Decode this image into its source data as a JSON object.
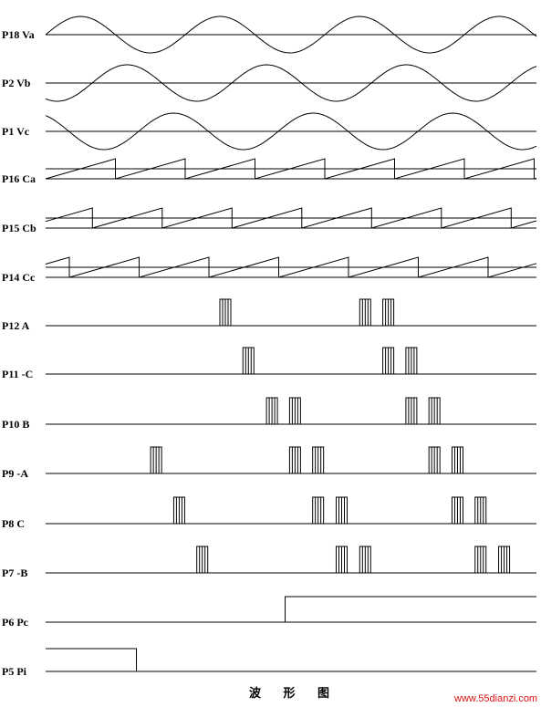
{
  "caption": "波 形 图",
  "watermark": "www.55dianzi.com",
  "rows": [
    {
      "label": "P18 Va",
      "kind": "sine",
      "phase_deg": 0
    },
    {
      "label": "P2 Vb",
      "kind": "sine",
      "phase_deg": -120
    },
    {
      "label": "P1 Vc",
      "kind": "sine",
      "phase_deg": -240
    },
    {
      "label": "P16 Ca",
      "kind": "saw",
      "offset_frac": 0.0
    },
    {
      "label": "P15 Cb",
      "kind": "saw",
      "offset_frac": 0.33
    },
    {
      "label": "P14 Cc",
      "kind": "saw",
      "offset_frac": 0.66
    },
    {
      "label": "P12 A",
      "kind": "pulses",
      "pulses_frac": [
        0.355,
        0.64,
        0.687
      ]
    },
    {
      "label": "P11 -C",
      "kind": "pulses",
      "pulses_frac": [
        0.402,
        0.687,
        0.734
      ]
    },
    {
      "label": "P10 B",
      "kind": "pulses",
      "pulses_frac": [
        0.45,
        0.497,
        0.734,
        0.781
      ]
    },
    {
      "label": "P9 -A",
      "kind": "pulses",
      "pulses_frac": [
        0.214,
        0.497,
        0.544,
        0.781,
        0.828
      ]
    },
    {
      "label": "P8 C",
      "kind": "pulses",
      "pulses_frac": [
        0.261,
        0.544,
        0.592,
        0.828,
        0.875
      ]
    },
    {
      "label": "P7 -B",
      "kind": "pulses",
      "pulses_frac": [
        0.308,
        0.592,
        0.64,
        0.875,
        0.923
      ]
    },
    {
      "label": "P6 Pc",
      "kind": "step_up",
      "at_frac": 0.488
    },
    {
      "label": "P5 Pi",
      "kind": "step_down",
      "at_frac": 0.185
    }
  ]
}
